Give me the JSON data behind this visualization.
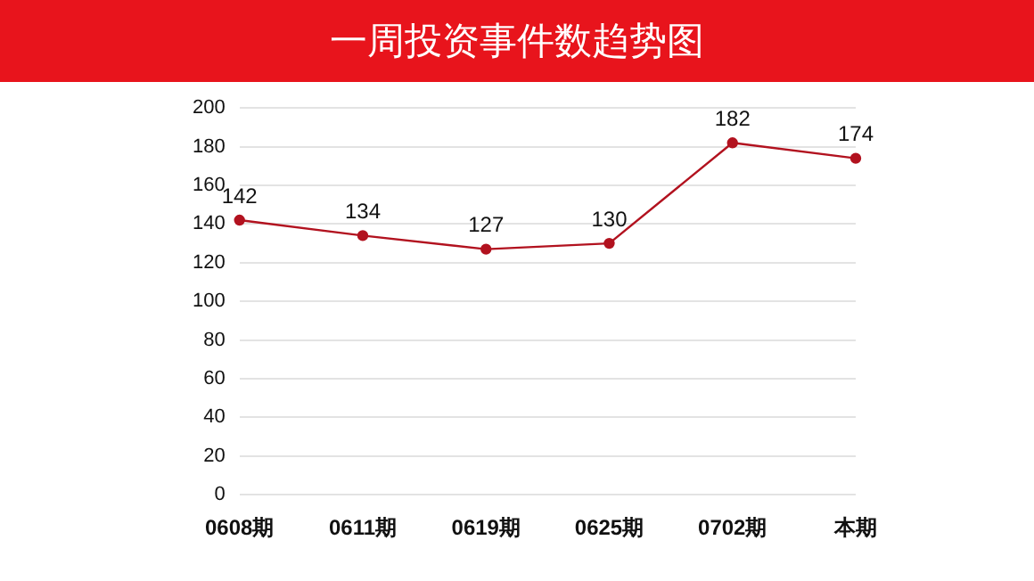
{
  "chart_data": {
    "type": "line",
    "title": "一周投资事件数趋势图",
    "categories": [
      "0608期",
      "0611期",
      "0619期",
      "0625期",
      "0702期",
      "本期"
    ],
    "series": [
      {
        "color": "#b2121f",
        "values": [
          142,
          134,
          127,
          130,
          182,
          174
        ]
      }
    ],
    "ylim": [
      0,
      200
    ],
    "yticks": [
      0,
      20,
      40,
      60,
      80,
      100,
      120,
      140,
      160,
      180,
      200
    ],
    "grid": "y",
    "legend": false,
    "marker": "circle",
    "data_labels": true
  }
}
